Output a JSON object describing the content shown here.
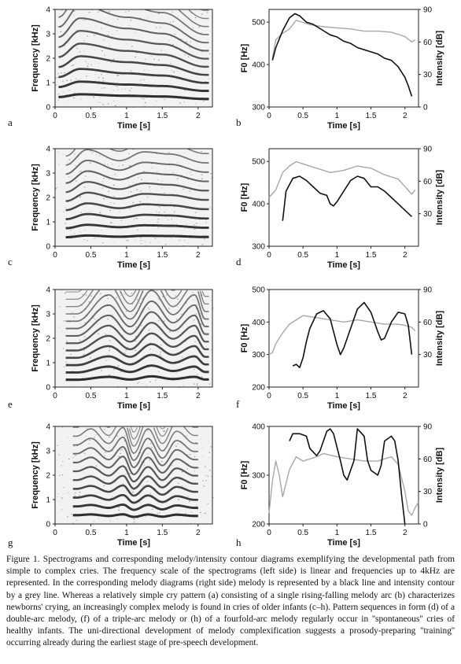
{
  "figure": {
    "caption": "Figure 1. Spectrograms and corresponding melody/intensity contour diagrams exemplifying the developmental path from simple to complex cries. The frequency scale of the spectrograms (left side) is linear and frequencies up to 4kHz are represented. In the corresponding melody diagrams (right side) melody is represented by a black line and intensity contour by a grey line. Whereas a relatively simple cry pattern (a) consisting of a single rising-falling melody arc (b) characterizes newborns' crying, an increasingly complex melody is found in cries of older infants (c–h). Pattern sequences in form (d) of a double-arc melody, (f) of a triple-arc melody or (h) of a fourfold-arc melody regularly occur in ''spontaneous'' cries of healthy infants. The uni-directional development of melody complexification suggests a prosody-preparing ''training'' occurring already during the earliest stage of pre-speech development.",
    "colors": {
      "melody": "#111111",
      "intensity": "#a8a8a8",
      "spectrogram_background": "#f2f2f2",
      "harmonic": "#1a1a1a"
    }
  },
  "spectrograms": [
    {
      "letter": "a",
      "ylabel": "Frequency [kHz]",
      "xlabel": "Time [s]",
      "yticks": [
        "0",
        "1",
        "2",
        "3",
        "4"
      ],
      "xticks": [
        "0",
        "0.5",
        "1",
        "1.5",
        "2"
      ],
      "ylim": [
        0,
        4
      ],
      "xlim": [
        0,
        2.2
      ],
      "cry_segment_s": [
        0.05,
        2.15
      ],
      "f0_contour_hz": [
        [
          0.05,
          410
        ],
        [
          0.35,
          520
        ],
        [
          1.0,
          460
        ],
        [
          1.5,
          430
        ],
        [
          2.1,
          330
        ]
      ]
    },
    {
      "letter": "c",
      "ylabel": "Frequency [kHz]",
      "xlabel": "Time [s]",
      "yticks": [
        "0",
        "1",
        "2",
        "3",
        "4"
      ],
      "xticks": [
        "0",
        "0.5",
        "1",
        "1.5",
        "2"
      ],
      "ylim": [
        0,
        4
      ],
      "xlim": [
        0,
        2.2
      ],
      "cry_segment_s": [
        0.15,
        2.15
      ],
      "f0_contour_hz": [
        [
          0.15,
          370
        ],
        [
          0.45,
          440
        ],
        [
          0.9,
          390
        ],
        [
          1.25,
          430
        ],
        [
          1.6,
          420
        ],
        [
          2.1,
          380
        ]
      ]
    },
    {
      "letter": "e",
      "ylabel": "Frequency [kHz]",
      "xlabel": "Time [s]",
      "yticks": [
        "0",
        "1",
        "2",
        "3",
        "4"
      ],
      "xticks": [
        "0",
        "0.5",
        "1",
        "1.5",
        "2"
      ],
      "ylim": [
        0,
        4
      ],
      "xlim": [
        0,
        2.2
      ],
      "cry_segment_s": [
        0.15,
        2.15
      ],
      "f0_contour_hz": [
        [
          0.3,
          300
        ],
        [
          0.75,
          420
        ],
        [
          1.05,
          310
        ],
        [
          1.35,
          440
        ],
        [
          1.65,
          330
        ],
        [
          1.95,
          420
        ],
        [
          2.1,
          310
        ]
      ]
    },
    {
      "letter": "g",
      "ylabel": "Frequency [kHz]",
      "xlabel": "Time [s]",
      "yticks": [
        "0",
        "1",
        "2",
        "3",
        "4"
      ],
      "xticks": [
        "0",
        "0.5",
        "1",
        "1.5",
        "2"
      ],
      "ylim": [
        0,
        4
      ],
      "xlim": [
        0,
        2.2
      ],
      "cry_segment_s": [
        0.25,
        2.0
      ],
      "f0_contour_hz": [
        [
          0.3,
          360
        ],
        [
          0.5,
          390
        ],
        [
          0.75,
          330
        ],
        [
          0.95,
          395
        ],
        [
          1.1,
          290
        ],
        [
          1.3,
          390
        ],
        [
          1.5,
          300
        ],
        [
          1.7,
          380
        ],
        [
          1.95,
          330
        ]
      ]
    }
  ],
  "melody_charts": [
    {
      "letter": "b",
      "ylabel_left": "F0 [Hz]",
      "ylabel_right": "Intensity [dB]",
      "xlabel": "Time [s]",
      "yticks_left": [
        "300",
        "400",
        "500"
      ],
      "yticks_right": [
        "0",
        "30",
        "60",
        "90"
      ],
      "xticks": [
        "0",
        "0.5",
        "1",
        "1.5",
        "2"
      ],
      "ylim_left": [
        300,
        530
      ],
      "ylim_right": [
        0,
        90
      ],
      "xlim": [
        0,
        2.2
      ]
    },
    {
      "letter": "d",
      "ylabel_left": "F0 [Hz]",
      "ylabel_right": "Intensity [dB]",
      "xlabel": "Time [s]",
      "yticks_left": [
        "300",
        "400",
        "500"
      ],
      "yticks_right": [
        "30",
        "60",
        "90"
      ],
      "xticks": [
        "0",
        "0.5",
        "1",
        "1.5",
        "2"
      ],
      "ylim_left": [
        300,
        530
      ],
      "ylim_right": [
        0,
        90
      ],
      "xlim": [
        0,
        2.2
      ]
    },
    {
      "letter": "f",
      "ylabel_left": "F0 [Hz]",
      "ylabel_right": "Intensity [dB]",
      "xlabel": "Time [s]",
      "yticks_left": [
        "200",
        "300",
        "400",
        "500"
      ],
      "yticks_right": [
        "30",
        "60",
        "90"
      ],
      "xticks": [
        "0",
        "0.5",
        "1",
        "1.5",
        "2"
      ],
      "ylim_left": [
        200,
        500
      ],
      "ylim_right": [
        0,
        90
      ],
      "xlim": [
        0,
        2.2
      ]
    },
    {
      "letter": "h",
      "ylabel_left": "F0 [Hz]",
      "ylabel_right": "Intensity [dB]",
      "xlabel": "Time [s]",
      "yticks_left": [
        "200",
        "300",
        "400"
      ],
      "yticks_right": [
        "0",
        "30",
        "60",
        "90"
      ],
      "xticks": [
        "0",
        "0.5",
        "1",
        "1.5",
        "2"
      ],
      "ylim_left": [
        200,
        400
      ],
      "ylim_right": [
        0,
        90
      ],
      "xlim": [
        0,
        2.2
      ]
    }
  ],
  "chart_data": [
    {
      "type": "line",
      "title": "",
      "xlabel": "Time [s]",
      "ylabel": "F0 [Hz]",
      "ylabel_right": "Intensity [dB]",
      "xlim": [
        0,
        2.2
      ],
      "ylim": [
        300,
        530
      ],
      "ylim_right": [
        0,
        90
      ],
      "grid": false,
      "series": [
        {
          "name": "",
          "color": "#111111",
          "axis": "left",
          "x": [
            0.05,
            0.1,
            0.2,
            0.3,
            0.38,
            0.45,
            0.55,
            0.65,
            0.8,
            0.9,
            1.0,
            1.1,
            1.2,
            1.3,
            1.4,
            1.5,
            1.6,
            1.7,
            1.8,
            1.9,
            2.0,
            2.05,
            2.1
          ],
          "y": [
            410,
            440,
            480,
            510,
            520,
            515,
            500,
            495,
            480,
            470,
            465,
            455,
            450,
            440,
            435,
            430,
            425,
            415,
            410,
            395,
            370,
            350,
            325
          ]
        },
        {
          "name": "",
          "color": "#a8a8a8",
          "axis": "right",
          "x": [
            0.05,
            0.1,
            0.2,
            0.3,
            0.4,
            0.5,
            0.6,
            0.8,
            1.0,
            1.2,
            1.4,
            1.6,
            1.8,
            2.0,
            2.1,
            2.15
          ],
          "y": [
            45,
            62,
            68,
            72,
            80,
            78,
            76,
            74,
            73,
            72,
            70,
            70,
            69,
            65,
            60,
            62
          ]
        }
      ]
    },
    {
      "type": "line",
      "title": "",
      "xlabel": "Time [s]",
      "ylabel": "F0 [Hz]",
      "ylabel_right": "Intensity [dB]",
      "xlim": [
        0,
        2.2
      ],
      "ylim": [
        300,
        530
      ],
      "ylim_right": [
        0,
        90
      ],
      "grid": false,
      "series": [
        {
          "name": "",
          "color": "#111111",
          "axis": "left",
          "x": [
            0.2,
            0.25,
            0.35,
            0.45,
            0.55,
            0.65,
            0.75,
            0.85,
            0.9,
            0.95,
            1.0,
            1.1,
            1.2,
            1.3,
            1.4,
            1.5,
            1.6,
            1.7,
            1.8,
            1.9,
            2.0,
            2.1
          ],
          "y": [
            360,
            430,
            460,
            465,
            455,
            440,
            425,
            420,
            400,
            395,
            405,
            430,
            455,
            465,
            460,
            440,
            440,
            430,
            415,
            400,
            385,
            370
          ]
        },
        {
          "name": "",
          "color": "#a8a8a8",
          "axis": "right",
          "x": [
            0.0,
            0.1,
            0.2,
            0.3,
            0.4,
            0.5,
            0.7,
            0.9,
            1.1,
            1.3,
            1.5,
            1.7,
            1.9,
            2.0,
            2.1,
            2.15
          ],
          "y": [
            45,
            52,
            68,
            74,
            78,
            76,
            72,
            68,
            70,
            74,
            72,
            66,
            62,
            55,
            48,
            52
          ]
        }
      ]
    },
    {
      "type": "line",
      "title": "",
      "xlabel": "Time [s]",
      "ylabel": "F0 [Hz]",
      "ylabel_right": "Intensity [dB]",
      "xlim": [
        0,
        2.2
      ],
      "ylim": [
        200,
        500
      ],
      "ylim_right": [
        0,
        90
      ],
      "grid": false,
      "series": [
        {
          "name": "",
          "color": "#111111",
          "axis": "left",
          "x": [
            0.35,
            0.4,
            0.45,
            0.5,
            0.55,
            0.6,
            0.7,
            0.8,
            0.9,
            1.0,
            1.05,
            1.1,
            1.2,
            1.3,
            1.4,
            1.5,
            1.6,
            1.65,
            1.7,
            1.8,
            1.9,
            2.0,
            2.05,
            2.1
          ],
          "y": [
            265,
            270,
            260,
            290,
            340,
            380,
            425,
            435,
            410,
            330,
            300,
            320,
            380,
            440,
            460,
            430,
            370,
            345,
            350,
            400,
            430,
            425,
            390,
            300
          ]
        },
        {
          "name": "",
          "color": "#a8a8a8",
          "axis": "right",
          "x": [
            0.0,
            0.05,
            0.1,
            0.2,
            0.3,
            0.5,
            0.7,
            0.9,
            1.1,
            1.3,
            1.5,
            1.7,
            1.9,
            2.0,
            2.1,
            2.15
          ],
          "y": [
            30,
            32,
            40,
            50,
            58,
            66,
            64,
            62,
            60,
            62,
            60,
            58,
            58,
            57,
            55,
            52
          ]
        }
      ]
    },
    {
      "type": "line",
      "title": "",
      "xlabel": "Time [s]",
      "ylabel": "F0 [Hz]",
      "ylabel_right": "Intensity [dB]",
      "xlim": [
        0,
        2.2
      ],
      "ylim": [
        200,
        400
      ],
      "ylim_right": [
        0,
        90
      ],
      "grid": false,
      "series": [
        {
          "name": "",
          "color": "#111111",
          "axis": "left",
          "x": [
            0.3,
            0.35,
            0.45,
            0.55,
            0.6,
            0.7,
            0.75,
            0.85,
            0.9,
            0.95,
            1.05,
            1.1,
            1.15,
            1.25,
            1.3,
            1.4,
            1.45,
            1.5,
            1.6,
            1.65,
            1.7,
            1.8,
            1.85,
            1.9,
            1.95,
            2.0
          ],
          "y": [
            370,
            385,
            385,
            380,
            355,
            340,
            350,
            390,
            395,
            385,
            330,
            300,
            290,
            330,
            395,
            380,
            330,
            310,
            300,
            320,
            370,
            380,
            370,
            330,
            260,
            200
          ]
        },
        {
          "name": "",
          "color": "#a8a8a8",
          "axis": "right",
          "x": [
            0.0,
            0.05,
            0.1,
            0.15,
            0.2,
            0.3,
            0.4,
            0.5,
            0.6,
            0.7,
            0.8,
            1.0,
            1.2,
            1.4,
            1.6,
            1.8,
            1.9,
            2.0,
            2.05,
            2.1,
            2.15,
            2.2
          ],
          "y": [
            10,
            40,
            58,
            45,
            25,
            50,
            62,
            58,
            60,
            62,
            65,
            62,
            60,
            58,
            58,
            62,
            55,
            30,
            12,
            8,
            15,
            20
          ]
        }
      ]
    }
  ]
}
